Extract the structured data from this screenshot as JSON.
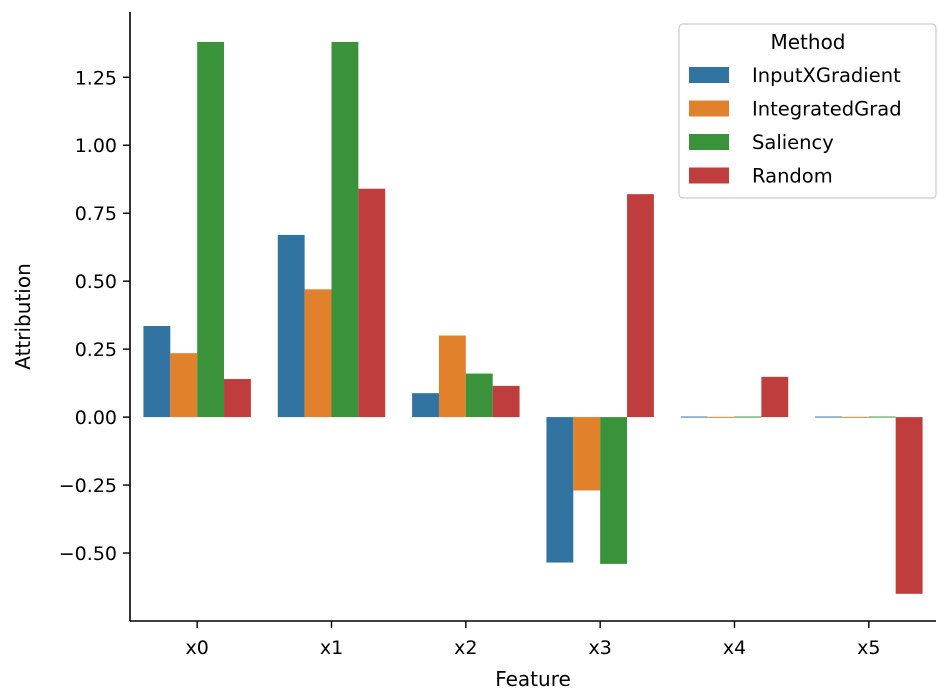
{
  "chart_data": {
    "type": "bar",
    "title": "",
    "xlabel": "Feature",
    "ylabel": "Attribution",
    "categories": [
      "x0",
      "x1",
      "x2",
      "x3",
      "x4",
      "x5"
    ],
    "ylim": [
      -0.75,
      1.49
    ],
    "yticks": [
      -0.5,
      -0.25,
      0.0,
      0.25,
      0.5,
      0.75,
      1.0,
      1.25
    ],
    "ytick_labels": [
      "−0.50",
      "−0.25",
      "0.00",
      "0.25",
      "0.50",
      "0.75",
      "1.00",
      "1.25"
    ],
    "grid": false,
    "legend": {
      "title": "Method",
      "placement": "top-right"
    },
    "series": [
      {
        "name": "InputXGradient",
        "color": "#3274a1",
        "values": [
          0.335,
          0.67,
          0.088,
          -0.535,
          0.002,
          0.002
        ]
      },
      {
        "name": "IntegratedGrad",
        "color": "#e1812c",
        "values": [
          0.235,
          0.47,
          0.3,
          -0.27,
          0.001,
          0.001
        ]
      },
      {
        "name": "Saliency",
        "color": "#3a923a",
        "values": [
          1.38,
          1.38,
          0.16,
          -0.54,
          0.002,
          0.002
        ]
      },
      {
        "name": "Random",
        "color": "#c03d3e",
        "values": [
          0.14,
          0.84,
          0.115,
          0.82,
          0.148,
          -0.65
        ]
      }
    ]
  }
}
